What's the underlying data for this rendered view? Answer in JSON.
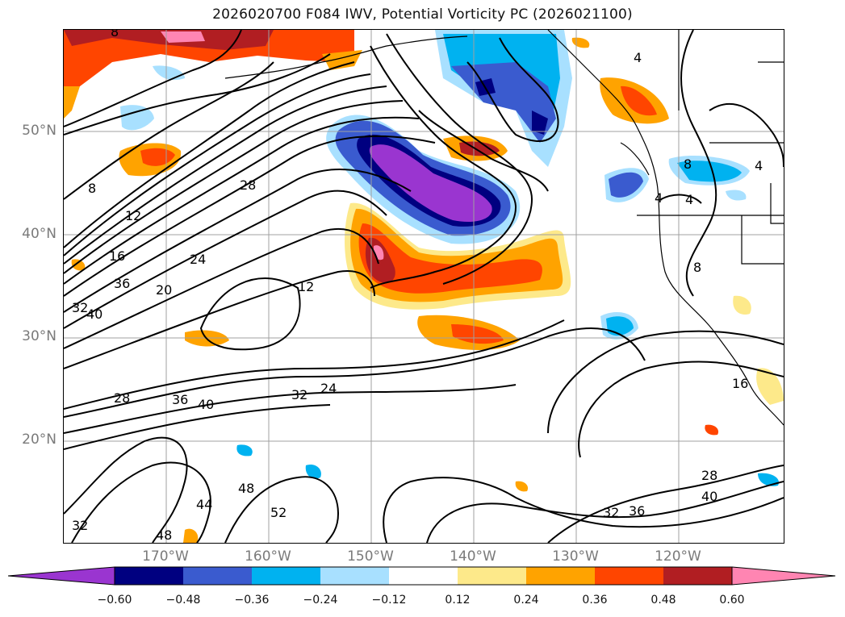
{
  "title": "2026020700 F084 IWV, Potential Vorticity PC (2026021100)",
  "map": {
    "lat_labels": [
      "50°N",
      "40°N",
      "30°N",
      "20°N"
    ],
    "lon_labels": [
      "170°W",
      "160°W",
      "150°W",
      "140°W",
      "130°W",
      "120°W"
    ],
    "contour_labels": [
      "8",
      "12",
      "16",
      "20",
      "24",
      "28",
      "32",
      "36",
      "40",
      "44",
      "48",
      "52",
      "8",
      "4",
      "4",
      "4",
      "16",
      "32",
      "36",
      "40",
      "28",
      "28",
      "36",
      "40",
      "24",
      "32",
      "12",
      "8",
      "48"
    ]
  },
  "colorbar": {
    "tick_labels": [
      "−0.60",
      "−0.48",
      "−0.36",
      "−0.24",
      "−0.12",
      "0.12",
      "0.24",
      "0.36",
      "0.48",
      "0.60"
    ],
    "colors": [
      "#9a35d0",
      "#000080",
      "#3a5bcf",
      "#00b2f0",
      "#a8e0ff",
      "#ffffff",
      "#fde98a",
      "#ffa300",
      "#ff4500",
      "#b11e22",
      "#ff85b2"
    ]
  }
}
